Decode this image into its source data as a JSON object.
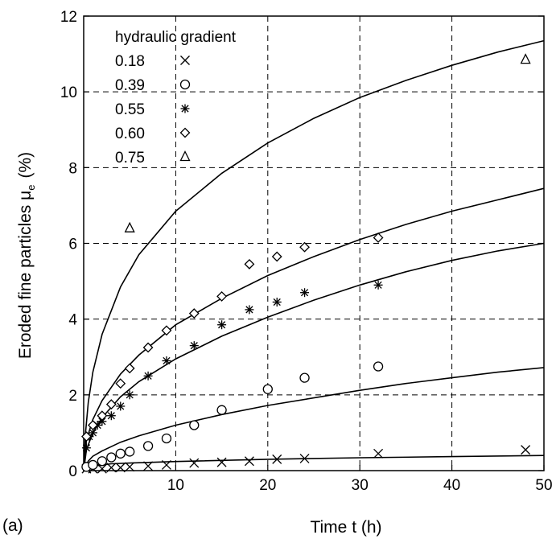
{
  "panel_label": "(a)",
  "chart_data": {
    "type": "scatter",
    "title": "",
    "xlabel": "Time  t  (h)",
    "ylabel_main": "Eroded fine particles ",
    "ylabel_symbol": "μ",
    "ylabel_sub": "e",
    "ylabel_unit": "(%)",
    "xlim": [
      0,
      50
    ],
    "ylim": [
      0,
      12
    ],
    "xticks": [
      10,
      20,
      30,
      40,
      50
    ],
    "yticks": [
      0,
      2,
      4,
      6,
      8,
      10,
      12
    ],
    "grid": true,
    "legend_title": "hydraulic gradient",
    "legend_position": "top-left",
    "series": [
      {
        "name": "0.18",
        "marker": "x",
        "points": [
          [
            0.3,
            0.05
          ],
          [
            1,
            0.05
          ],
          [
            2,
            0.05
          ],
          [
            3,
            0.08
          ],
          [
            4,
            0.08
          ],
          [
            5,
            0.1
          ],
          [
            7,
            0.12
          ],
          [
            9,
            0.15
          ],
          [
            12,
            0.2
          ],
          [
            15,
            0.22
          ],
          [
            18,
            0.25
          ],
          [
            21,
            0.3
          ],
          [
            24,
            0.32
          ],
          [
            32,
            0.45
          ],
          [
            48,
            0.55
          ]
        ],
        "fit_curve": [
          [
            0,
            0
          ],
          [
            0.5,
            0.08
          ],
          [
            1,
            0.12
          ],
          [
            3,
            0.18
          ],
          [
            5,
            0.2
          ],
          [
            10,
            0.24
          ],
          [
            20,
            0.3
          ],
          [
            30,
            0.34
          ],
          [
            40,
            0.37
          ],
          [
            50,
            0.4
          ]
        ]
      },
      {
        "name": "0.39",
        "marker": "circle",
        "points": [
          [
            0.3,
            0.1
          ],
          [
            1,
            0.15
          ],
          [
            2,
            0.25
          ],
          [
            3,
            0.35
          ],
          [
            4,
            0.45
          ],
          [
            5,
            0.5
          ],
          [
            7,
            0.65
          ],
          [
            9,
            0.85
          ],
          [
            12,
            1.2
          ],
          [
            15,
            1.6
          ],
          [
            20,
            2.15
          ],
          [
            24,
            2.45
          ],
          [
            32,
            2.75
          ]
        ],
        "fit_curve": [
          [
            0,
            0
          ],
          [
            0.5,
            0.25
          ],
          [
            1,
            0.38
          ],
          [
            2,
            0.52
          ],
          [
            4,
            0.75
          ],
          [
            6,
            0.92
          ],
          [
            10,
            1.2
          ],
          [
            15,
            1.48
          ],
          [
            20,
            1.72
          ],
          [
            25,
            1.92
          ],
          [
            30,
            2.12
          ],
          [
            35,
            2.3
          ],
          [
            40,
            2.45
          ],
          [
            45,
            2.6
          ],
          [
            50,
            2.72
          ]
        ]
      },
      {
        "name": "0.55",
        "marker": "asterisk",
        "points": [
          [
            0.3,
            0.6
          ],
          [
            0.6,
            0.9
          ],
          [
            1,
            1.0
          ],
          [
            1.5,
            1.2
          ],
          [
            2,
            1.3
          ],
          [
            3,
            1.45
          ],
          [
            4,
            1.7
          ],
          [
            5,
            2.0
          ],
          [
            7,
            2.5
          ],
          [
            9,
            2.9
          ],
          [
            12,
            3.3
          ],
          [
            15,
            3.85
          ],
          [
            18,
            4.25
          ],
          [
            21,
            4.45
          ],
          [
            24,
            4.7
          ],
          [
            32,
            4.9
          ]
        ],
        "fit_curve": [
          [
            0,
            0
          ],
          [
            0.3,
            0.55
          ],
          [
            1,
            1.0
          ],
          [
            2,
            1.4
          ],
          [
            4,
            1.95
          ],
          [
            6,
            2.35
          ],
          [
            10,
            2.95
          ],
          [
            15,
            3.55
          ],
          [
            20,
            4.05
          ],
          [
            25,
            4.5
          ],
          [
            30,
            4.9
          ],
          [
            35,
            5.25
          ],
          [
            40,
            5.55
          ],
          [
            45,
            5.8
          ],
          [
            50,
            6.0
          ]
        ]
      },
      {
        "name": "0.60",
        "marker": "diamond",
        "points": [
          [
            0.3,
            0.9
          ],
          [
            1,
            1.2
          ],
          [
            2,
            1.45
          ],
          [
            3,
            1.75
          ],
          [
            4,
            2.3
          ],
          [
            5,
            2.7
          ],
          [
            7,
            3.25
          ],
          [
            9,
            3.7
          ],
          [
            12,
            4.15
          ],
          [
            15,
            4.6
          ],
          [
            18,
            5.45
          ],
          [
            21,
            5.65
          ],
          [
            24,
            5.9
          ],
          [
            32,
            6.15
          ]
        ],
        "fit_curve": [
          [
            0,
            0
          ],
          [
            0.3,
            0.8
          ],
          [
            1,
            1.35
          ],
          [
            2,
            1.85
          ],
          [
            4,
            2.55
          ],
          [
            6,
            3.05
          ],
          [
            10,
            3.85
          ],
          [
            15,
            4.55
          ],
          [
            20,
            5.15
          ],
          [
            25,
            5.65
          ],
          [
            30,
            6.1
          ],
          [
            35,
            6.5
          ],
          [
            40,
            6.85
          ],
          [
            45,
            7.15
          ],
          [
            50,
            7.45
          ]
        ]
      },
      {
        "name": "0.75",
        "marker": "triangle",
        "points": [
          [
            5,
            6.4
          ],
          [
            48,
            10.85
          ]
        ],
        "fit_curve": [
          [
            0,
            0
          ],
          [
            0.2,
            1.0
          ],
          [
            0.5,
            1.8
          ],
          [
            1,
            2.6
          ],
          [
            2,
            3.6
          ],
          [
            4,
            4.85
          ],
          [
            6,
            5.7
          ],
          [
            10,
            6.85
          ],
          [
            15,
            7.85
          ],
          [
            20,
            8.65
          ],
          [
            25,
            9.3
          ],
          [
            30,
            9.85
          ],
          [
            35,
            10.3
          ],
          [
            40,
            10.7
          ],
          [
            45,
            11.05
          ],
          [
            50,
            11.35
          ]
        ]
      }
    ]
  }
}
